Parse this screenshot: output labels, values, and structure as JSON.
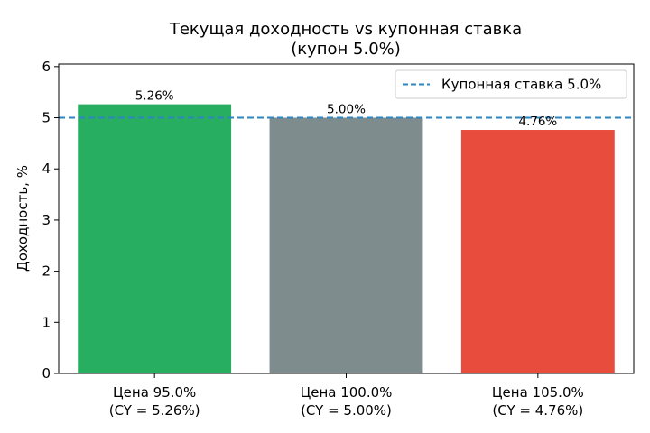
{
  "chart_data": {
    "type": "bar",
    "title": "Текущая доходность vs купонная ставка",
    "subtitle": "(купон 5.0%)",
    "xlabel": "",
    "ylabel": "Доходность, %",
    "ylim": [
      0,
      6.05
    ],
    "yticks": [
      "0",
      "1",
      "2",
      "3",
      "4",
      "5",
      "6"
    ],
    "grid": false,
    "categories": [
      [
        "Цена 95.0%",
        "(CY = 5.26%)"
      ],
      [
        "Цена 100.0%",
        "(CY = 5.00%)"
      ],
      [
        "Цена 105.0%",
        "(CY = 4.76%)"
      ]
    ],
    "values": [
      5.263,
      5.0,
      4.762
    ],
    "data_labels": [
      "5.26%",
      "5.00%",
      "4.76%"
    ],
    "bar_colors": [
      "#27ae60",
      "#7f8c8d",
      "#e74c3c"
    ],
    "reference_line": {
      "value": 5.0,
      "label": "Купонная ставка 5.0%",
      "color": "#2e86c1",
      "style": "dashed"
    },
    "legend_position": "top-right"
  }
}
